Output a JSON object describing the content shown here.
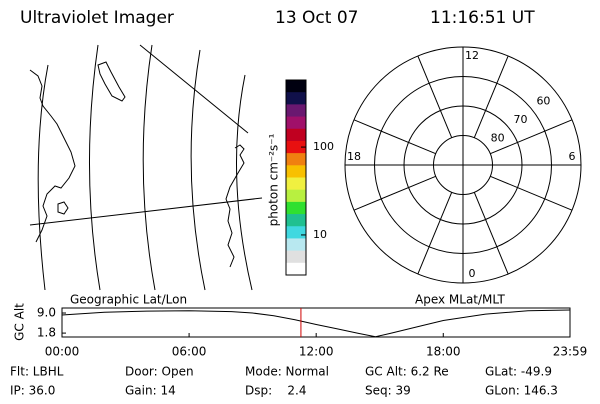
{
  "header": {
    "title": "Ultraviolet Imager",
    "date": "13 Oct 07",
    "time": "11:16:51 UT"
  },
  "map": {
    "label": "Geographic Lat/Lon"
  },
  "colorbar": {
    "label": "photon cm⁻²s⁻¹",
    "log": true,
    "lim": [
      3.5,
      580
    ],
    "ticks": [
      10,
      100
    ]
  },
  "polar": {
    "label": "Apex MLat/MLT",
    "rlim": [
      90,
      50
    ],
    "lat_ticks": [
      60,
      70,
      80
    ],
    "mlt_ticks": [
      12,
      18,
      6,
      0
    ]
  },
  "altitude": {
    "ylabel": "GC Alt",
    "ylim": [
      0.4,
      10.8
    ],
    "yticks": [
      {
        "value": 9.0,
        "label": "9.0"
      },
      {
        "value": 1.8,
        "label": "1.8"
      }
    ],
    "xlim": [
      0,
      23.983
    ],
    "xticks": [
      {
        "value": 0,
        "label": "00:00"
      },
      {
        "value": 6,
        "label": "06:00"
      },
      {
        "value": 12,
        "label": "12:00"
      },
      {
        "value": 18,
        "label": "18:00"
      },
      {
        "value": 23.983,
        "label": "23:59"
      }
    ],
    "x": [
      0,
      2,
      4,
      6,
      8,
      9,
      10,
      11,
      12,
      13,
      14,
      14.8,
      15.5,
      17,
      18,
      20,
      22,
      23.983
    ],
    "values": [
      8.3,
      9.3,
      9.7,
      9.8,
      9.5,
      9.0,
      8.0,
      6.6,
      4.9,
      3.3,
      1.7,
      0.5,
      1.7,
      4.5,
      6.3,
      8.6,
      9.8,
      10.1
    ],
    "marker_time": 11.28,
    "marker_color": "#d00000"
  },
  "footer": [
    [
      "Flt: LBHL",
      "Door: Open",
      "Mode: Normal",
      "GC Alt: 6.2 Re",
      "GLat: -49.9"
    ],
    [
      "IP: 36.0",
      "Gain: 14",
      "Dsp:    2.4",
      "Seq: 39",
      "GLon: 146.3"
    ]
  ]
}
